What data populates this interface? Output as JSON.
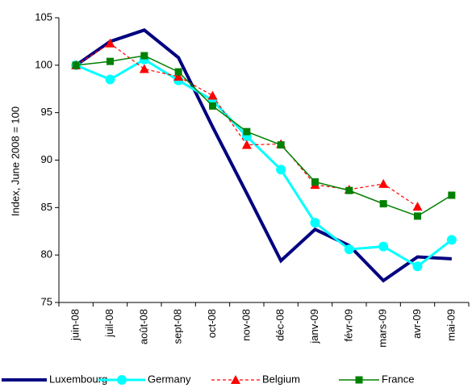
{
  "chart_data": {
    "type": "line",
    "y_label": "Index, June 2008 = 100",
    "categories": [
      "juin-08",
      "juil-08",
      "août-08",
      "sept-08",
      "oct-08",
      "nov-08",
      "déc-08",
      "janv-09",
      "févr-09",
      "mars-09",
      "avr-09",
      "mai-09"
    ],
    "series": [
      {
        "name": "Luxembourg",
        "color": "#000080",
        "values": [
          100,
          102.5,
          103.7,
          100.8,
          93.5,
          86.5,
          79.4,
          82.7,
          81.0,
          77.3,
          79.8,
          79.6
        ]
      },
      {
        "name": "Germany",
        "color": "#00ffff",
        "values": [
          100,
          98.5,
          100.6,
          98.4,
          96.3,
          92.5,
          89.0,
          83.4,
          80.6,
          80.9,
          78.8,
          81.6
        ]
      },
      {
        "name": "Belgium",
        "color": "#ff0000",
        "values": [
          100,
          102.3,
          99.6,
          98.8,
          96.8,
          91.6,
          91.7,
          87.4,
          86.9,
          87.5,
          85.1,
          null
        ]
      },
      {
        "name": "France",
        "color": "#008000",
        "values": [
          100,
          100.4,
          101.0,
          99.3,
          95.7,
          93.0,
          91.6,
          87.7,
          86.8,
          85.4,
          84.1,
          86.3
        ]
      }
    ],
    "ylim": [
      75,
      105
    ],
    "yticks": [
      75,
      80,
      85,
      90,
      95,
      100,
      105
    ],
    "grid": false,
    "legend": "bottom"
  }
}
